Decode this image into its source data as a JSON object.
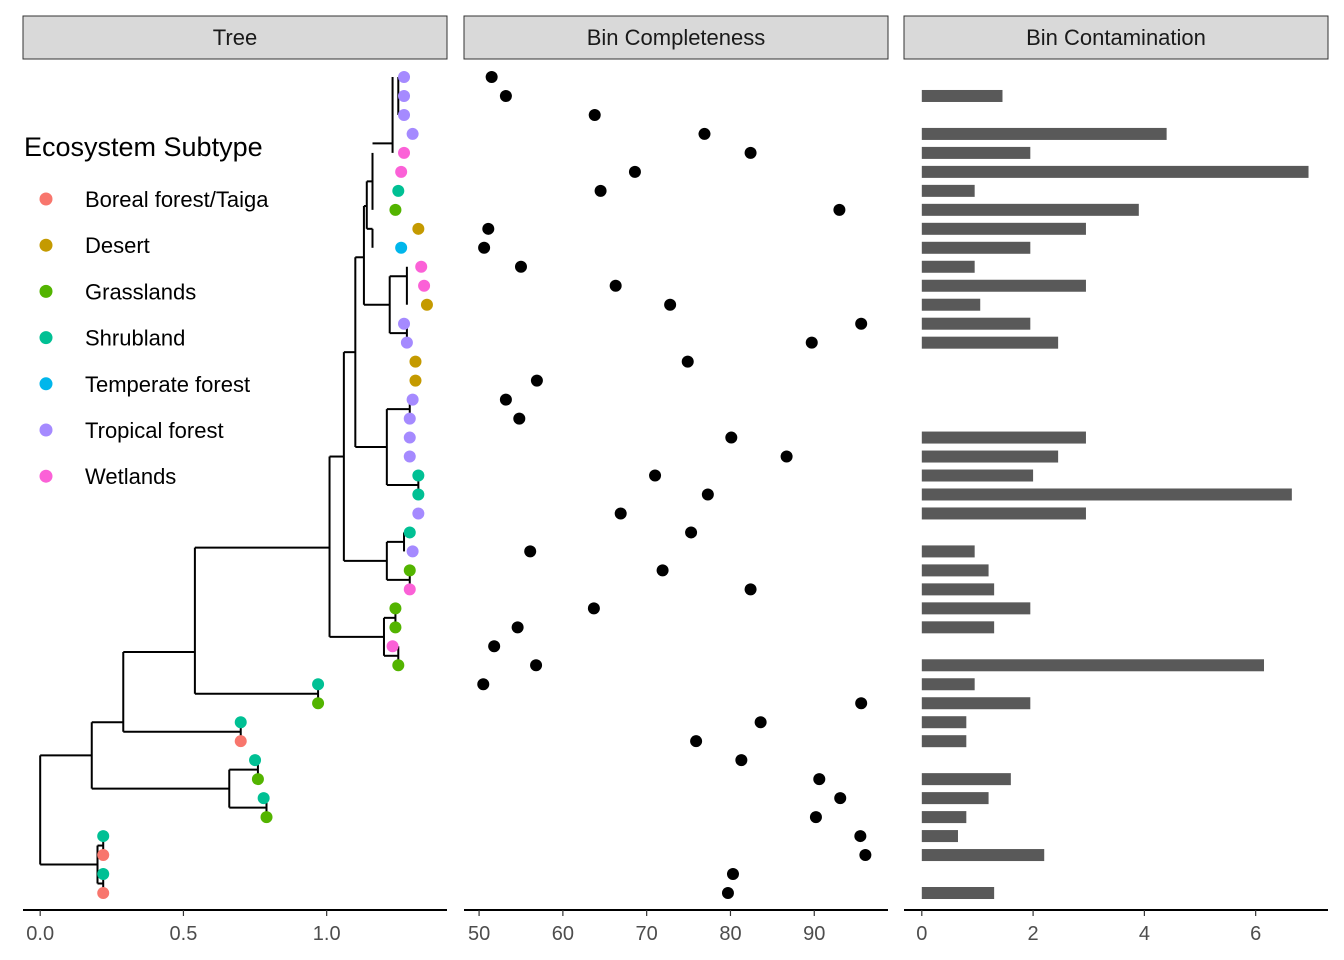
{
  "panels": {
    "tree": {
      "strip": "Tree"
    },
    "completeness": {
      "strip": "Bin Completeness"
    },
    "contamination": {
      "strip": "Bin Contamination"
    }
  },
  "legend": {
    "title": "Ecosystem Subtype",
    "items": [
      {
        "label": "Boreal forest/Taiga",
        "color": "#F8766D"
      },
      {
        "label": "Desert",
        "color": "#C49A00"
      },
      {
        "label": "Grasslands",
        "color": "#53B400"
      },
      {
        "label": "Shrubland",
        "color": "#00C094"
      },
      {
        "label": "Temperate forest",
        "color": "#00B6EB"
      },
      {
        "label": "Tropical forest",
        "color": "#A58AFF"
      },
      {
        "label": "Wetlands",
        "color": "#FB61D7"
      }
    ]
  },
  "chart_data": [
    {
      "type": "tree",
      "title": "Tree",
      "xlim": [
        -0.06,
        1.42
      ],
      "xticks": [
        "0.0",
        "0.5",
        "1.0"
      ],
      "xtick_values": [
        0,
        0.5,
        1.0
      ],
      "ylim": [
        0.5,
        44.5
      ],
      "nodes": [
        {
          "x": 0.22,
          "y": 1,
          "sub": 0
        },
        {
          "x": 0.22,
          "y": 2,
          "sub": 3
        },
        {
          "x": 0.22,
          "y": 3,
          "sub": 0
        },
        {
          "x": 0.22,
          "y": 4,
          "sub": 3
        },
        {
          "x": 0.79,
          "y": 5,
          "sub": 2
        },
        {
          "x": 0.78,
          "y": 6,
          "sub": 3
        },
        {
          "x": 0.76,
          "y": 7,
          "sub": 2
        },
        {
          "x": 0.75,
          "y": 8,
          "sub": 3
        },
        {
          "x": 0.7,
          "y": 9,
          "sub": 0
        },
        {
          "x": 0.7,
          "y": 10,
          "sub": 3
        },
        {
          "x": 0.97,
          "y": 11,
          "sub": 2
        },
        {
          "x": 0.97,
          "y": 12,
          "sub": 3
        },
        {
          "x": 1.25,
          "y": 13,
          "sub": 2
        },
        {
          "x": 1.23,
          "y": 14,
          "sub": 6
        },
        {
          "x": 1.24,
          "y": 15,
          "sub": 2
        },
        {
          "x": 1.24,
          "y": 16,
          "sub": 2
        },
        {
          "x": 1.29,
          "y": 17,
          "sub": 6
        },
        {
          "x": 1.29,
          "y": 18,
          "sub": 2
        },
        {
          "x": 1.3,
          "y": 19,
          "sub": 5
        },
        {
          "x": 1.29,
          "y": 20,
          "sub": 3
        },
        {
          "x": 1.32,
          "y": 21,
          "sub": 5
        },
        {
          "x": 1.32,
          "y": 22,
          "sub": 3
        },
        {
          "x": 1.32,
          "y": 23,
          "sub": 3
        },
        {
          "x": 1.29,
          "y": 24,
          "sub": 5
        },
        {
          "x": 1.29,
          "y": 25,
          "sub": 5
        },
        {
          "x": 1.29,
          "y": 26,
          "sub": 5
        },
        {
          "x": 1.3,
          "y": 27,
          "sub": 5
        },
        {
          "x": 1.31,
          "y": 28,
          "sub": 1
        },
        {
          "x": 1.31,
          "y": 29,
          "sub": 1
        },
        {
          "x": 1.28,
          "y": 30,
          "sub": 5
        },
        {
          "x": 1.27,
          "y": 31,
          "sub": 5
        },
        {
          "x": 1.35,
          "y": 32,
          "sub": 1
        },
        {
          "x": 1.34,
          "y": 33,
          "sub": 6
        },
        {
          "x": 1.33,
          "y": 34,
          "sub": 6
        },
        {
          "x": 1.26,
          "y": 35,
          "sub": 4
        },
        {
          "x": 1.32,
          "y": 36,
          "sub": 1
        },
        {
          "x": 1.24,
          "y": 37,
          "sub": 2
        },
        {
          "x": 1.25,
          "y": 38,
          "sub": 3
        },
        {
          "x": 1.26,
          "y": 39,
          "sub": 6
        },
        {
          "x": 1.27,
          "y": 40,
          "sub": 6
        },
        {
          "x": 1.3,
          "y": 41,
          "sub": 5
        },
        {
          "x": 1.27,
          "y": 42,
          "sub": 5
        },
        {
          "x": 1.27,
          "y": 43,
          "sub": 5
        },
        {
          "x": 1.27,
          "y": 44,
          "sub": 5
        }
      ],
      "edges": [
        [
          0.0,
          2.5,
          0.0,
          8.25
        ],
        [
          0.0,
          2.5,
          0.2,
          2.5
        ],
        [
          0.0,
          8.25,
          0.18,
          8.25
        ],
        [
          0.2,
          1.5,
          0.2,
          3.5
        ],
        [
          0.2,
          1.5,
          0.22,
          1.5
        ],
        [
          0.2,
          3.5,
          0.22,
          3.5
        ],
        [
          0.22,
          1,
          0.22,
          2
        ],
        [
          0.22,
          3,
          0.22,
          4
        ],
        [
          0.18,
          6.5,
          0.18,
          10
        ],
        [
          0.18,
          6.5,
          0.66,
          6.5
        ],
        [
          0.18,
          10,
          0.29,
          10
        ],
        [
          0.66,
          5.5,
          0.66,
          7.5
        ],
        [
          0.66,
          5.5,
          0.79,
          5.5
        ],
        [
          0.66,
          7.5,
          0.76,
          7.5
        ],
        [
          0.79,
          5,
          0.79,
          6
        ],
        [
          0.76,
          7,
          0.76,
          8
        ],
        [
          0.29,
          9.5,
          0.29,
          13.7
        ],
        [
          0.29,
          9.5,
          0.7,
          9.5
        ],
        [
          0.29,
          13.7,
          0.54,
          13.7
        ],
        [
          0.7,
          9,
          0.7,
          10
        ],
        [
          0.54,
          11.5,
          0.54,
          19.2
        ],
        [
          0.54,
          11.5,
          0.97,
          11.5
        ],
        [
          0.54,
          19.2,
          1.01,
          19.2
        ],
        [
          0.97,
          11,
          0.97,
          12
        ],
        [
          1.01,
          14.5,
          1.01,
          24.0
        ],
        [
          1.01,
          14.5,
          1.2,
          14.5
        ],
        [
          1.01,
          24.0,
          1.06,
          24.0
        ],
        [
          1.2,
          13.5,
          1.2,
          15.5
        ],
        [
          1.2,
          13.5,
          1.25,
          13.5
        ],
        [
          1.2,
          15.5,
          1.24,
          15.5
        ],
        [
          1.25,
          13,
          1.25,
          14
        ],
        [
          1.24,
          15,
          1.24,
          16
        ],
        [
          1.06,
          18.5,
          1.06,
          29.5
        ],
        [
          1.06,
          18.5,
          1.21,
          18.5
        ],
        [
          1.06,
          29.5,
          1.1,
          29.5
        ],
        [
          1.21,
          17.5,
          1.21,
          19.5
        ],
        [
          1.21,
          17.5,
          1.29,
          17.5
        ],
        [
          1.21,
          19.5,
          1.27,
          19.5
        ],
        [
          1.29,
          17,
          1.29,
          18
        ],
        [
          1.27,
          19,
          1.27,
          20
        ],
        [
          1.1,
          24.5,
          1.1,
          34.5
        ],
        [
          1.1,
          24.5,
          1.21,
          24.5
        ],
        [
          1.1,
          34.5,
          1.13,
          34.5
        ],
        [
          1.21,
          22.5,
          1.21,
          26.5
        ],
        [
          1.21,
          22.5,
          1.32,
          22.5
        ],
        [
          1.21,
          26.5,
          1.29,
          26.5
        ],
        [
          1.32,
          22,
          1.32,
          23
        ],
        [
          1.29,
          26,
          1.29,
          27
        ],
        [
          1.13,
          32.0,
          1.13,
          37.2
        ],
        [
          1.13,
          32.0,
          1.22,
          32.0
        ],
        [
          1.13,
          37.2,
          1.14,
          37.2
        ],
        [
          1.22,
          30.5,
          1.22,
          33.5
        ],
        [
          1.22,
          30.5,
          1.28,
          30.5
        ],
        [
          1.22,
          33.5,
          1.28,
          33.5
        ],
        [
          1.28,
          30,
          1.28,
          31
        ],
        [
          1.28,
          32,
          1.28,
          34
        ],
        [
          1.14,
          36.0,
          1.14,
          38.5
        ],
        [
          1.14,
          36.0,
          1.16,
          36.0
        ],
        [
          1.14,
          38.5,
          1.16,
          38.5
        ],
        [
          1.16,
          35,
          1.16,
          36
        ],
        [
          1.16,
          37,
          1.16,
          40
        ],
        [
          1.16,
          40.5,
          1.23,
          40.5
        ],
        [
          1.23,
          40,
          1.23,
          44
        ],
        [
          1.25,
          42,
          1.25,
          44
        ]
      ]
    },
    {
      "type": "scatter",
      "title": "Bin Completeness",
      "xlim": [
        48.2,
        98.8
      ],
      "xticks": [
        "50",
        "60",
        "70",
        "80",
        "90"
      ],
      "xtick_values": [
        50,
        60,
        70,
        80,
        90
      ],
      "y": [
        1,
        2,
        3,
        4,
        5,
        6,
        7,
        8,
        9,
        10,
        11,
        12,
        13,
        14,
        15,
        16,
        17,
        18,
        19,
        20,
        21,
        22,
        23,
        24,
        25,
        26,
        27,
        28,
        29,
        30,
        31,
        32,
        33,
        34,
        35,
        36,
        37,
        38,
        39,
        40,
        41,
        42,
        43,
        44
      ],
      "values": [
        79.7,
        80.3,
        96.1,
        95.5,
        90.2,
        93.1,
        90.6,
        81.3,
        75.9,
        83.6,
        95.6,
        50.5,
        56.8,
        51.8,
        54.6,
        63.7,
        82.4,
        71.9,
        56.1,
        75.3,
        66.9,
        77.3,
        71.0,
        86.7,
        80.1,
        54.8,
        53.2,
        56.9,
        74.9,
        89.7,
        95.6,
        72.8,
        66.3,
        55.0,
        50.6,
        51.1,
        93.0,
        64.5,
        68.6,
        82.4,
        76.9,
        63.8,
        53.2,
        51.5
      ]
    },
    {
      "type": "bar",
      "title": "Bin Contamination",
      "orientation": "horizontal",
      "xlim": [
        -0.32,
        7.3
      ],
      "xticks": [
        "0",
        "2",
        "4",
        "6"
      ],
      "xtick_values": [
        0,
        2,
        4,
        6
      ],
      "y": [
        1,
        2,
        3,
        4,
        5,
        6,
        7,
        8,
        9,
        10,
        11,
        12,
        13,
        14,
        15,
        16,
        17,
        18,
        19,
        20,
        21,
        22,
        23,
        24,
        25,
        26,
        27,
        28,
        29,
        30,
        31,
        32,
        33,
        34,
        35,
        36,
        37,
        38,
        39,
        40,
        41,
        42,
        43,
        44
      ],
      "values": [
        1.3,
        0,
        2.2,
        0.65,
        0.8,
        1.2,
        1.6,
        0,
        0.8,
        0.8,
        1.95,
        0.95,
        6.15,
        0,
        1.3,
        1.95,
        1.3,
        1.2,
        0.95,
        0,
        2.95,
        6.65,
        2.0,
        2.45,
        2.95,
        0,
        0,
        0,
        0,
        2.45,
        1.95,
        1.05,
        2.95,
        0.95,
        1.95,
        2.95,
        3.9,
        0.95,
        6.95,
        1.95,
        4.4,
        0,
        1.45,
        0
      ]
    }
  ]
}
